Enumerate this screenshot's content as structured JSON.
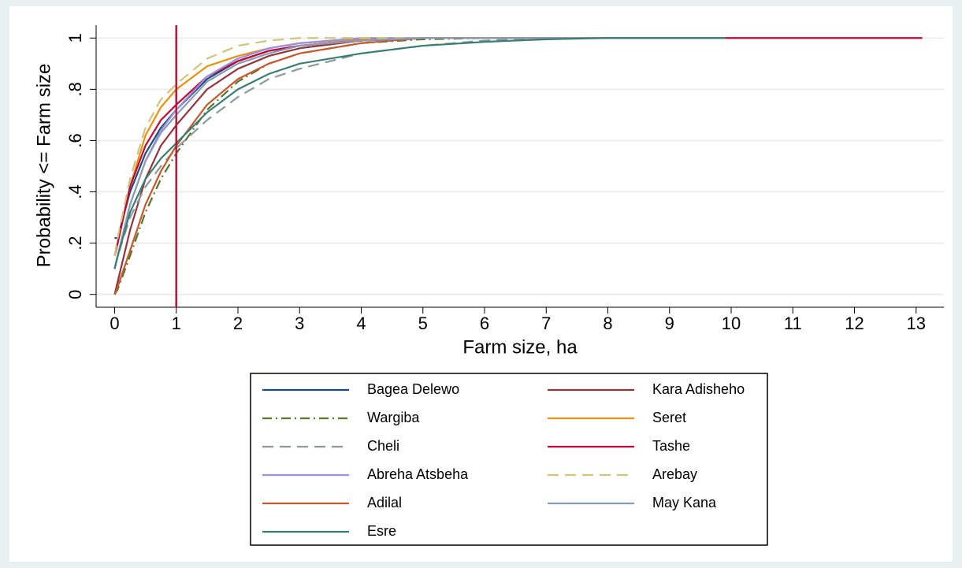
{
  "chart_data": {
    "type": "line",
    "x_label": "Farm size, ha",
    "y_label": "Probability <= Farm size",
    "x": [
      0,
      0.05,
      0.25,
      0.5,
      0.75,
      1,
      1.5,
      2,
      2.5,
      3,
      4,
      5,
      6,
      7,
      8,
      9.9,
      13.1
    ],
    "xlim": [
      -0.3,
      13.45
    ],
    "xticks": [
      0,
      1,
      2,
      3,
      4,
      5,
      6,
      7,
      8,
      9,
      10,
      11,
      12,
      13
    ],
    "ylim": [
      -0.05,
      1.05
    ],
    "yticks": [
      0,
      {
        "value": 0.2,
        "label": ".2"
      },
      {
        "value": 0.4,
        "label": ".4"
      },
      {
        "value": 0.6,
        "label": ".6"
      },
      {
        "value": 0.8,
        "label": ".8"
      },
      1
    ],
    "grid": true,
    "xline": {
      "value": 1,
      "color": "#b5173d"
    },
    "legend": "bottom",
    "series": [
      {
        "name": "Bagea Delewo",
        "color": "#1a4a7a",
        "style": "solid",
        "values": [
          0.22,
          0.22,
          0.4,
          0.55,
          0.65,
          0.72,
          0.84,
          0.91,
          0.95,
          0.97,
          0.99,
          1,
          1,
          1,
          1,
          1,
          null
        ]
      },
      {
        "name": "Kara Adisheho",
        "color": "#90353b",
        "style": "solid",
        "values": [
          0,
          0.05,
          0.25,
          0.45,
          0.58,
          0.66,
          0.8,
          0.88,
          0.93,
          0.96,
          0.99,
          1,
          1,
          1,
          1,
          1,
          null
        ]
      },
      {
        "name": "Wargiba",
        "color": "#55752f",
        "style": "dashdot",
        "values": [
          0,
          0.02,
          0.15,
          0.32,
          0.45,
          0.55,
          0.72,
          0.83,
          0.9,
          0.94,
          0.98,
          0.995,
          1,
          1,
          1,
          1,
          null
        ]
      },
      {
        "name": "Seret",
        "color": "#e8900f",
        "style": "solid",
        "values": [
          0.15,
          0.2,
          0.42,
          0.62,
          0.73,
          0.8,
          0.89,
          0.93,
          0.96,
          0.98,
          0.995,
          1,
          1,
          1,
          1,
          1,
          null
        ]
      },
      {
        "name": "Cheli",
        "color": "#8a9a9a",
        "style": "dash",
        "values": [
          0.1,
          0.15,
          0.3,
          0.42,
          0.5,
          0.57,
          0.68,
          0.77,
          0.84,
          0.88,
          0.94,
          0.97,
          0.99,
          1,
          1,
          1,
          null
        ]
      },
      {
        "name": "Tashe",
        "color": "#c10534",
        "style": "solid",
        "values": [
          0.15,
          0.2,
          0.42,
          0.58,
          0.68,
          0.74,
          0.85,
          0.91,
          0.95,
          0.97,
          0.99,
          1,
          1,
          1,
          1,
          1,
          1
        ]
      },
      {
        "name": "Abreha Atsbeha",
        "color": "#9c8fe0",
        "style": "solid",
        "values": [
          0.1,
          0.15,
          0.35,
          0.52,
          0.64,
          0.72,
          0.85,
          0.92,
          0.96,
          0.98,
          1,
          1,
          1,
          1,
          1,
          1,
          null
        ]
      },
      {
        "name": "Arebay",
        "color": "#d0c47d",
        "style": "dash",
        "values": [
          0.15,
          0.22,
          0.45,
          0.65,
          0.76,
          0.82,
          0.92,
          0.97,
          0.99,
          1,
          1,
          1,
          1,
          1,
          1,
          1,
          null
        ]
      },
      {
        "name": "Adilal",
        "color": "#c35a2e",
        "style": "solid",
        "values": [
          0,
          0.03,
          0.17,
          0.35,
          0.48,
          0.58,
          0.74,
          0.84,
          0.9,
          0.94,
          0.98,
          1,
          1,
          1,
          1,
          1,
          null
        ]
      },
      {
        "name": "May Kana",
        "color": "#8a9bb5",
        "style": "solid",
        "values": [
          0.1,
          0.15,
          0.35,
          0.52,
          0.63,
          0.7,
          0.83,
          0.9,
          0.94,
          0.97,
          0.99,
          1,
          1,
          1,
          1,
          1,
          null
        ]
      },
      {
        "name": "Esre",
        "color": "#3a7d72",
        "style": "solid",
        "values": [
          0.1,
          0.15,
          0.32,
          0.45,
          0.53,
          0.59,
          0.71,
          0.8,
          0.86,
          0.9,
          0.94,
          0.97,
          0.985,
          0.995,
          1,
          1,
          null
        ]
      }
    ]
  }
}
